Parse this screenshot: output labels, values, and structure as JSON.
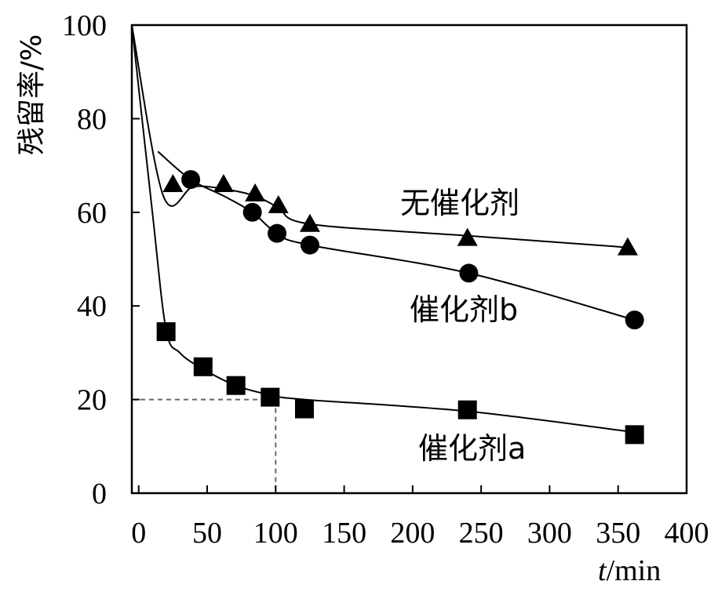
{
  "chart_data": {
    "type": "scatter",
    "title": "",
    "xlabel": "t/min",
    "xlabel_italic_part": "t",
    "xlabel_rest": "/min",
    "ylabel": "残留率/%",
    "xlim": [
      -5,
      400
    ],
    "ylim": [
      0,
      100
    ],
    "x_ticks": [
      0,
      50,
      100,
      150,
      200,
      250,
      300,
      350,
      400
    ],
    "y_ticks": [
      0,
      20,
      40,
      60,
      80,
      100
    ],
    "grid": false,
    "reference_point": {
      "x": 100,
      "y": 20
    },
    "series": [
      {
        "name": "无催化剂",
        "marker": "triangle",
        "points": [
          [
            25,
            66
          ],
          [
            62,
            66
          ],
          [
            85,
            64
          ],
          [
            102,
            61.5
          ],
          [
            125,
            57.5
          ],
          [
            240,
            54.5
          ],
          [
            357,
            52.5
          ]
        ],
        "curve": [
          [
            -5,
            100
          ],
          [
            18,
            63.5
          ],
          [
            40,
            65.5
          ],
          [
            62,
            65
          ],
          [
            85,
            63.5
          ],
          [
            102,
            61
          ],
          [
            125,
            57.5
          ],
          [
            240,
            55
          ],
          [
            357,
            52.5
          ]
        ]
      },
      {
        "name": "催化剂b",
        "marker": "circle",
        "points": [
          [
            38,
            67
          ],
          [
            83,
            60
          ],
          [
            101,
            55.5
          ],
          [
            125,
            53
          ],
          [
            241,
            47
          ],
          [
            362,
            37
          ]
        ],
        "curve": [
          [
            14,
            73
          ],
          [
            38,
            67
          ],
          [
            62,
            63.5
          ],
          [
            83,
            60
          ],
          [
            101,
            55.5
          ],
          [
            125,
            53
          ],
          [
            241,
            47
          ],
          [
            362,
            37
          ]
        ]
      },
      {
        "name": "催化剂a",
        "marker": "square",
        "points": [
          [
            20,
            34.5
          ],
          [
            47,
            27
          ],
          [
            71,
            23
          ],
          [
            96,
            20.5
          ],
          [
            121,
            18
          ],
          [
            240,
            17.8
          ],
          [
            362,
            12.5
          ]
        ],
        "curve": [
          [
            -5,
            100
          ],
          [
            10,
            60
          ],
          [
            20,
            35
          ],
          [
            30,
            30
          ],
          [
            47,
            26.5
          ],
          [
            71,
            23
          ],
          [
            96,
            21
          ],
          [
            121,
            20
          ],
          [
            240,
            17.5
          ],
          [
            362,
            13
          ]
        ]
      }
    ]
  }
}
